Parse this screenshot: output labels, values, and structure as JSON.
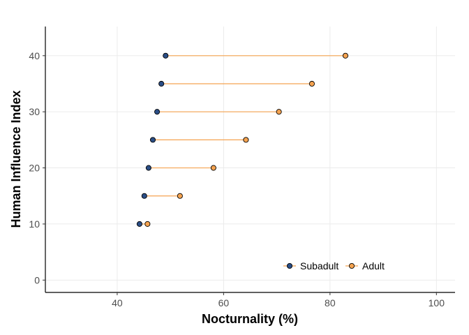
{
  "chart_data": {
    "type": "dumbbell",
    "xlabel": "Nocturnality (%)",
    "ylabel": "Human Influence Index",
    "xlim": [
      26.5,
      103.5
    ],
    "ylim": [
      -2.2,
      45.2
    ],
    "x_ticks": [
      40,
      60,
      80,
      100
    ],
    "y_ticks": [
      0,
      10,
      20,
      30,
      40
    ],
    "grid": true,
    "legend_position": "bottom-right",
    "colors": {
      "subadult": "#2b4e86",
      "adult": "#f5a350",
      "segment": "#f5a350",
      "grid": "#ebebeb"
    },
    "series": [
      {
        "name": "Subadult",
        "key": "subadult"
      },
      {
        "name": "Adult",
        "key": "adult"
      }
    ],
    "rows": [
      {
        "hii": 10,
        "subadult": 44.2,
        "adult": 45.7
      },
      {
        "hii": 15,
        "subadult": 45.1,
        "adult": 51.8
      },
      {
        "hii": 20,
        "subadult": 45.9,
        "adult": 58.1
      },
      {
        "hii": 25,
        "subadult": 46.7,
        "adult": 64.2
      },
      {
        "hii": 30,
        "subadult": 47.5,
        "adult": 70.4
      },
      {
        "hii": 35,
        "subadult": 48.3,
        "adult": 76.6
      },
      {
        "hii": 40,
        "subadult": 49.1,
        "adult": 82.9
      }
    ]
  }
}
